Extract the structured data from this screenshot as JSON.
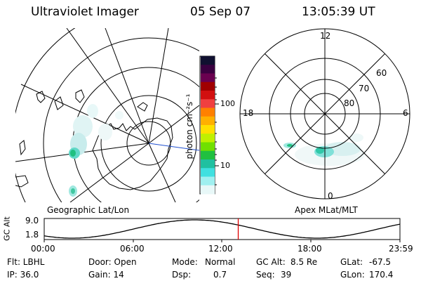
{
  "header": {
    "title": "Ultraviolet Imager",
    "date": "05 Sep 07",
    "time": "13:05:39 UT"
  },
  "colorbar": {
    "unit_label": "photon cm⁻²s⁻¹",
    "ticks": [
      "100",
      "10"
    ],
    "colors": [
      "#101030",
      "#3a0040",
      "#6a0050",
      "#a00000",
      "#d21010",
      "#f04040",
      "#ff8000",
      "#ffb000",
      "#ffe000",
      "#c0f000",
      "#70e000",
      "#20c040",
      "#20c0a0",
      "#40e0e0",
      "#a0f0f0",
      "#e8f8f8"
    ]
  },
  "left_panel": {
    "caption": "Geographic Lat/Lon"
  },
  "right_panel": {
    "caption": "Apex MLat/MLT",
    "mlt_labels": {
      "top": "12",
      "left": "18",
      "right": "6",
      "bottom": "0"
    },
    "lat_labels": [
      "60",
      "70",
      "80"
    ]
  },
  "altitude_plot": {
    "ylabel": "GC Alt",
    "ymax_label": "9.0",
    "ymin_label": "1.8",
    "x_ticks": [
      "00:00",
      "06:00",
      "12:00",
      "18:00",
      "23:59"
    ],
    "current_time_hours": 13.09,
    "marker_color": "#e00000"
  },
  "info": {
    "row1": {
      "flt": "Flt: LBHL",
      "door": "Door: Open",
      "mode_label": "Mode:",
      "mode_value": "Normal",
      "gcalt_label": "GC Alt:",
      "gcalt_value": "8.5 Re",
      "glat_label": "GLat:",
      "glat_value": "-67.5"
    },
    "row2": {
      "ip": "IP: 36.0",
      "gain": "Gain: 14",
      "dsp_label": "Dsp:",
      "dsp_value": "0.7",
      "seq_label": "Seq:",
      "seq_value": "39",
      "glon_label": "GLon:",
      "glon_value": "170.4"
    }
  }
}
